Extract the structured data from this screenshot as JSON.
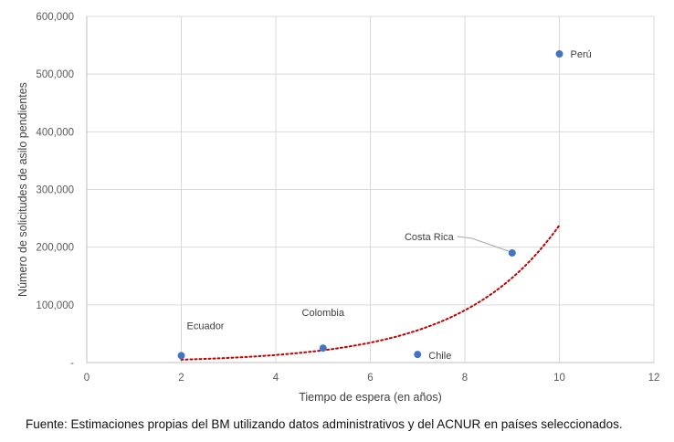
{
  "source_note": "Fuente: Estimaciones propias del BM utilizando datos administrativos y del ACNUR en países seleccionados.",
  "colors": {
    "point": "#4472c4",
    "trend": "#c00000",
    "grid": "#d9d9d9",
    "axis": "#bfbfbf",
    "tick_text": "#595959",
    "label_text": "#404040",
    "leader": "#a6a6a6"
  },
  "chart_data": {
    "type": "scatter",
    "title": "",
    "xlabel": "Tiempo de espera (en años)",
    "ylabel": "Número de solicitudes de asilo pendientes",
    "xlim": [
      0,
      12
    ],
    "ylim": [
      0,
      600000
    ],
    "xticks": [
      0,
      2,
      4,
      6,
      8,
      10,
      12
    ],
    "yticks": [
      0,
      100000,
      200000,
      300000,
      400000,
      500000,
      600000
    ],
    "ytick_labels": [
      "-",
      "100,000",
      "200,000",
      "300,000",
      "400,000",
      "500,000",
      "600,000"
    ],
    "xtick_labels": [
      "0",
      "2",
      "4",
      "6",
      "8",
      "10",
      "12"
    ],
    "grid": "both",
    "points": [
      {
        "label": "Ecuador",
        "x": 2,
        "y": 12000
      },
      {
        "label": "Colombia",
        "x": 5,
        "y": 25000
      },
      {
        "label": "Chile",
        "x": 7,
        "y": 14000
      },
      {
        "label": "Costa Rica",
        "x": 9,
        "y": 190000
      },
      {
        "label": "Perú",
        "x": 10,
        "y": 535000
      }
    ],
    "trendline": {
      "type": "exponential",
      "style": "dotted",
      "x_start": 2,
      "x_end": 10,
      "y_start": 5000,
      "y_end": 238000
    }
  }
}
